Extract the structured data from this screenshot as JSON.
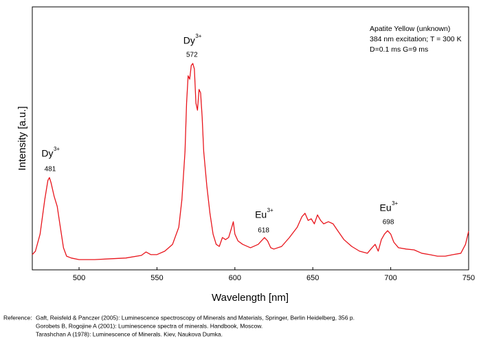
{
  "chart_data": {
    "type": "line",
    "x_label": "Wavelength [nm]",
    "y_label": "Intensity [a.u.]",
    "info": [
      "Apatite Yellow (unknown)",
      "384 nm excitation; T = 300 K",
      "D=0.1 ms G=9 ms"
    ],
    "annotations": [
      {
        "ion": "Dy",
        "charge": "3+",
        "x": 481
      },
      {
        "ion": "Dy",
        "charge": "3+",
        "x": 572
      },
      {
        "ion": "Eu",
        "charge": "3+",
        "x": 618
      },
      {
        "ion": "Eu",
        "charge": "3+",
        "x": 698
      }
    ],
    "xlim": [
      470,
      750
    ],
    "xticks": [
      500,
      550,
      600,
      650,
      700,
      750
    ],
    "ylim": [
      0,
      100
    ],
    "series": [
      {
        "color": "#e8141b",
        "x": [
          470,
          472,
          475,
          478,
          480,
          481,
          482,
          484,
          486,
          488,
          490,
          492,
          495,
          500,
          510,
          520,
          530,
          540,
          543,
          546,
          550,
          555,
          560,
          564,
          566,
          568,
          569,
          570,
          571,
          572,
          573,
          574,
          575,
          576,
          577,
          578,
          579,
          580,
          582,
          584,
          586,
          588,
          590,
          592,
          594,
          596,
          598,
          599,
          600,
          602,
          605,
          610,
          615,
          617,
          619,
          621,
          623,
          625,
          630,
          635,
          640,
          643,
          645,
          647,
          649,
          651,
          653,
          655,
          657,
          660,
          663,
          666,
          670,
          675,
          680,
          685,
          688,
          690,
          692,
          694,
          696,
          698,
          700,
          702,
          705,
          710,
          715,
          720,
          725,
          730,
          735,
          740,
          745,
          748,
          750
        ],
        "values": [
          5.8,
          7.1,
          13.6,
          26.7,
          34.0,
          35.1,
          33.2,
          28.0,
          24.1,
          16.2,
          8.4,
          5.2,
          4.5,
          3.9,
          3.9,
          4.2,
          4.5,
          5.5,
          6.8,
          5.8,
          5.8,
          7.1,
          9.7,
          16.2,
          26.7,
          45.0,
          63.4,
          73.8,
          72.5,
          77.7,
          78.5,
          76.4,
          63.4,
          60.7,
          68.6,
          67.3,
          58.1,
          45.0,
          31.9,
          21.5,
          13.6,
          9.7,
          8.9,
          12.3,
          11.5,
          12.3,
          16.2,
          18.3,
          13.6,
          11.0,
          9.7,
          8.4,
          9.7,
          11.0,
          12.3,
          11.0,
          8.4,
          7.9,
          8.9,
          12.3,
          16.2,
          20.2,
          21.5,
          18.8,
          19.4,
          17.5,
          20.9,
          18.8,
          17.5,
          18.3,
          17.5,
          14.9,
          11.5,
          8.9,
          7.1,
          6.3,
          8.4,
          9.7,
          7.1,
          11.5,
          13.6,
          14.9,
          13.6,
          10.5,
          8.4,
          7.9,
          7.6,
          6.3,
          5.8,
          5.2,
          5.2,
          5.8,
          6.3,
          9.7,
          14.7
        ]
      }
    ]
  },
  "references": {
    "label": "Reference:",
    "items": [
      "Gaft, Reisfeld & Panczer (2005): Luminescence spectroscopy of Minerals and Materials, Springer, Berlin Heidelberg, 356 p.",
      "Gorobets B, Rogojine A (2001): Luminescence spectra of minerals. Handbook, Moscow.",
      "Tarashchan A (1978): Luminescence of Minerals. Kiev, Naukova Dumka."
    ]
  }
}
